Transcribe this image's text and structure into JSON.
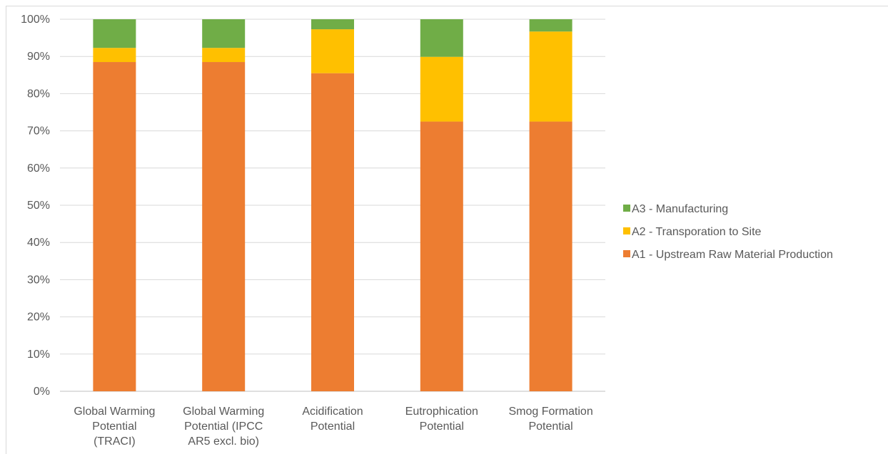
{
  "chart_data": {
    "type": "bar",
    "stacked": true,
    "categories": [
      [
        "Global Warming",
        "Potential",
        "(TRACI)"
      ],
      [
        "Global Warming",
        "Potential (IPCC",
        "AR5 excl. bio)"
      ],
      [
        "Acidification",
        "Potential"
      ],
      [
        "Eutrophication",
        "Potential"
      ],
      [
        "Smog Formation",
        "Potential"
      ]
    ],
    "series": [
      {
        "name": "A1 - Upstream Raw Material Production",
        "color": "#ed7d31",
        "values": [
          88.5,
          88.5,
          85.5,
          72.5,
          72.5
        ]
      },
      {
        "name": "A2 - Transporation to Site",
        "color": "#ffc000",
        "values": [
          3.8,
          3.8,
          11.8,
          17.4,
          24.2
        ]
      },
      {
        "name": "A3 - Manufacturing",
        "color": "#70ad47",
        "values": [
          7.7,
          7.7,
          2.7,
          10.1,
          3.3
        ]
      }
    ],
    "ylim": [
      0,
      100
    ],
    "yticks": [
      "0%",
      "10%",
      "20%",
      "30%",
      "40%",
      "50%",
      "60%",
      "70%",
      "80%",
      "90%",
      "100%"
    ],
    "yticks_values": [
      0,
      10,
      20,
      30,
      40,
      50,
      60,
      70,
      80,
      90,
      100
    ],
    "grid": true,
    "legend_position": "right",
    "legend_order": [
      2,
      1,
      0
    ]
  }
}
